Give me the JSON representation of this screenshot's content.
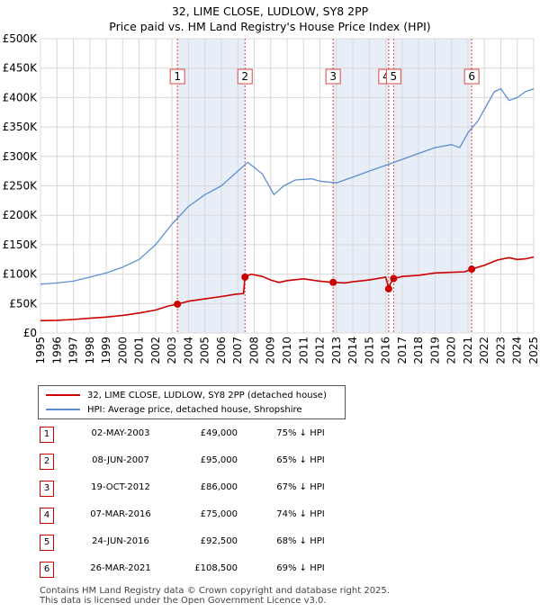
{
  "title_line1": "32, LIME CLOSE, LUDLOW, SY8 2PP",
  "title_line2": "Price paid vs. HM Land Registry's House Price Index (HPI)",
  "colors": {
    "property": "#cc0000",
    "hpi": "#5b8fd0",
    "band": "#e8eef8",
    "vline": "#dd4444",
    "grid": "#d8d8d8"
  },
  "chart_data": {
    "type": "line",
    "xlim": [
      1995,
      2025
    ],
    "ylim": [
      0,
      500000
    ],
    "y_ticks": [
      {
        "value": 0,
        "label": "£0"
      },
      {
        "value": 50000,
        "label": "£50K"
      },
      {
        "value": 100000,
        "label": "£100K"
      },
      {
        "value": 150000,
        "label": "£150K"
      },
      {
        "value": 200000,
        "label": "£200K"
      },
      {
        "value": 250000,
        "label": "£250K"
      },
      {
        "value": 300000,
        "label": "£300K"
      },
      {
        "value": 350000,
        "label": "£350K"
      },
      {
        "value": 400000,
        "label": "£400K"
      },
      {
        "value": 450000,
        "label": "£450K"
      },
      {
        "value": 500000,
        "label": "£500K"
      }
    ],
    "x_ticks": [
      "1995",
      "1996",
      "1997",
      "1998",
      "1999",
      "2000",
      "2001",
      "2002",
      "2003",
      "2004",
      "2005",
      "2006",
      "2007",
      "2008",
      "2009",
      "2010",
      "2011",
      "2012",
      "2013",
      "2014",
      "2015",
      "2016",
      "2017",
      "2018",
      "2019",
      "2020",
      "2021",
      "2022",
      "2023",
      "2024",
      "2025"
    ],
    "grid": true,
    "legend_position": "below",
    "series": [
      {
        "name": "32, LIME CLOSE, LUDLOW, SY8 2PP (detached house)",
        "color": "#cc0000",
        "points": [
          [
            1995.0,
            21000
          ],
          [
            1996.0,
            21500
          ],
          [
            1997.0,
            23000
          ],
          [
            1998.0,
            25000
          ],
          [
            1999.0,
            27000
          ],
          [
            2000.0,
            30000
          ],
          [
            2001.0,
            34000
          ],
          [
            2002.0,
            39000
          ],
          [
            2002.8,
            46000
          ],
          [
            2003.33,
            49000
          ],
          [
            2004.0,
            54000
          ],
          [
            2005.0,
            58000
          ],
          [
            2006.0,
            62000
          ],
          [
            2006.9,
            66000
          ],
          [
            2007.35,
            67000
          ],
          [
            2007.44,
            95000
          ],
          [
            2007.8,
            100000
          ],
          [
            2008.5,
            96000
          ],
          [
            2009.0,
            90000
          ],
          [
            2009.5,
            86000
          ],
          [
            2010.0,
            89000
          ],
          [
            2011.0,
            92000
          ],
          [
            2012.0,
            88000
          ],
          [
            2012.8,
            86000
          ],
          [
            2013.5,
            85000
          ],
          [
            2014.0,
            87000
          ],
          [
            2015.0,
            90000
          ],
          [
            2016.0,
            95000
          ],
          [
            2016.15,
            80000
          ],
          [
            2016.18,
            75000
          ],
          [
            2016.3,
            85000
          ],
          [
            2016.48,
            92500
          ],
          [
            2017.0,
            96000
          ],
          [
            2018.0,
            98000
          ],
          [
            2019.0,
            102000
          ],
          [
            2020.0,
            103000
          ],
          [
            2020.8,
            104000
          ],
          [
            2021.23,
            108500
          ],
          [
            2022.0,
            115000
          ],
          [
            2022.8,
            124000
          ],
          [
            2023.5,
            128000
          ],
          [
            2024.0,
            125000
          ],
          [
            2024.5,
            126000
          ],
          [
            2025.0,
            129000
          ]
        ]
      },
      {
        "name": "HPI: Average price, detached house, Shropshire",
        "color": "#5b8fd0",
        "points": [
          [
            1995.0,
            83000
          ],
          [
            1995.5,
            84000
          ],
          [
            1996.0,
            85000
          ],
          [
            1997.0,
            88000
          ],
          [
            1998.0,
            95000
          ],
          [
            1999.0,
            102000
          ],
          [
            2000.0,
            112000
          ],
          [
            2001.0,
            125000
          ],
          [
            2002.0,
            150000
          ],
          [
            2003.0,
            185000
          ],
          [
            2004.0,
            215000
          ],
          [
            2005.0,
            235000
          ],
          [
            2006.0,
            250000
          ],
          [
            2007.0,
            275000
          ],
          [
            2007.6,
            290000
          ],
          [
            2008.5,
            270000
          ],
          [
            2009.2,
            235000
          ],
          [
            2009.8,
            250000
          ],
          [
            2010.5,
            260000
          ],
          [
            2011.5,
            262000
          ],
          [
            2012.0,
            258000
          ],
          [
            2013.0,
            255000
          ],
          [
            2014.0,
            265000
          ],
          [
            2015.0,
            275000
          ],
          [
            2016.0,
            285000
          ],
          [
            2017.0,
            295000
          ],
          [
            2018.0,
            305000
          ],
          [
            2019.0,
            315000
          ],
          [
            2020.0,
            320000
          ],
          [
            2020.5,
            315000
          ],
          [
            2021.0,
            340000
          ],
          [
            2021.6,
            360000
          ],
          [
            2022.0,
            380000
          ],
          [
            2022.6,
            410000
          ],
          [
            2023.0,
            415000
          ],
          [
            2023.5,
            395000
          ],
          [
            2024.0,
            400000
          ],
          [
            2024.5,
            410000
          ],
          [
            2025.0,
            415000
          ]
        ]
      }
    ],
    "transactions": [
      {
        "n": "1",
        "x": 2003.33,
        "value": 49000,
        "date": "02-MAY-2003",
        "price": "£49,000",
        "hpi": "75% ↓ HPI"
      },
      {
        "n": "2",
        "x": 2007.44,
        "value": 95000,
        "date": "08-JUN-2007",
        "price": "£95,000",
        "hpi": "65% ↓ HPI"
      },
      {
        "n": "3",
        "x": 2012.8,
        "value": 86000,
        "date": "19-OCT-2012",
        "price": "£86,000",
        "hpi": "67% ↓ HPI"
      },
      {
        "n": "4",
        "x": 2016.18,
        "value": 75000,
        "date": "07-MAR-2016",
        "price": "£75,000",
        "hpi": "74% ↓ HPI"
      },
      {
        "n": "5",
        "x": 2016.48,
        "value": 92500,
        "date": "24-JUN-2016",
        "price": "£92,500",
        "hpi": "68% ↓ HPI"
      },
      {
        "n": "6",
        "x": 2021.23,
        "value": 108500,
        "date": "26-MAR-2021",
        "price": "£108,500",
        "hpi": "69% ↓ HPI"
      }
    ],
    "shaded_spans": [
      [
        2003.33,
        2007.44
      ],
      [
        2012.8,
        2016.18
      ],
      [
        2016.48,
        2021.23
      ]
    ]
  },
  "legend": {
    "property": "32, LIME CLOSE, LUDLOW, SY8 2PP (detached house)",
    "hpi": "HPI: Average price, detached house, Shropshire"
  },
  "footer_line1": "Contains HM Land Registry data © Crown copyright and database right 2025.",
  "footer_line2": "This data is licensed under the Open Government Licence v3.0."
}
